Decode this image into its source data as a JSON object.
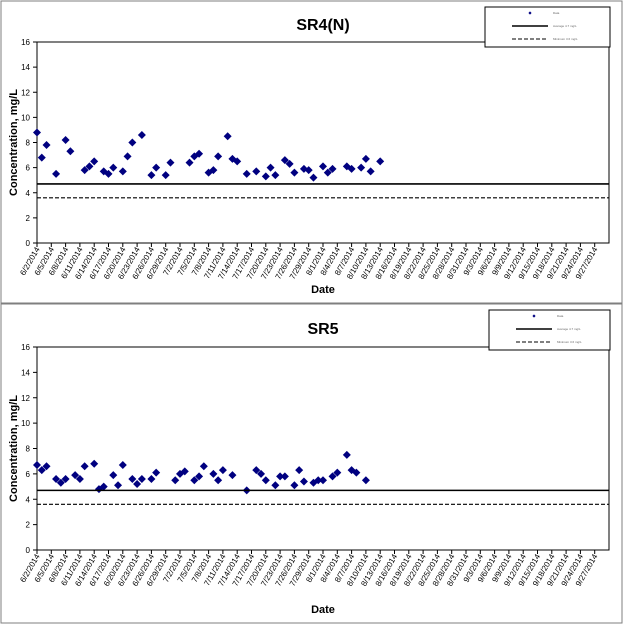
{
  "chart_data": [
    {
      "id": "sr4",
      "type": "scatter",
      "title": "SR4(N)",
      "xlabel": "Date",
      "ylabel": "Concentration, mg/L",
      "ylim": [
        0,
        16
      ],
      "yticks": [
        0,
        2,
        4,
        6,
        8,
        10,
        12,
        14,
        16
      ],
      "xlim": [
        "2014-06-02",
        "2014-09-30"
      ],
      "grid": false,
      "legend_position": "top-right",
      "legend": [
        "Data",
        "Average 4.7 mg/L",
        "Minimum 3.6 mg/L"
      ],
      "xticks": [
        "6/2/2014",
        "6/5/2014",
        "6/8/2014",
        "6/11/2014",
        "6/14/2014",
        "6/17/2014",
        "6/20/2014",
        "6/23/2014",
        "6/26/2014",
        "6/29/2014",
        "7/2/2014",
        "7/5/2014",
        "7/8/2014",
        "7/11/2014",
        "7/14/2014",
        "7/17/2014",
        "7/20/2014",
        "7/23/2014",
        "7/26/2014",
        "7/29/2014",
        "8/1/2014",
        "8/4/2014",
        "8/7/2014",
        "8/10/2014",
        "8/13/2014",
        "8/16/2014",
        "8/19/2014",
        "8/22/2014",
        "8/25/2014",
        "8/28/2014",
        "8/31/2014",
        "9/3/2014",
        "9/6/2014",
        "9/9/2014",
        "9/12/2014",
        "9/15/2014",
        "9/18/2014",
        "9/21/2014",
        "9/24/2014",
        "9/27/2014"
      ],
      "series": [
        {
          "name": "Data",
          "marker": "diamond",
          "color": "#000080",
          "points": [
            [
              "2014-06-02",
              8.8
            ],
            [
              "2014-06-03",
              6.8
            ],
            [
              "2014-06-04",
              7.8
            ],
            [
              "2014-06-06",
              5.5
            ],
            [
              "2014-06-08",
              8.2
            ],
            [
              "2014-06-09",
              7.3
            ],
            [
              "2014-06-12",
              5.8
            ],
            [
              "2014-06-13",
              6.1
            ],
            [
              "2014-06-14",
              6.5
            ],
            [
              "2014-06-16",
              5.7
            ],
            [
              "2014-06-17",
              5.5
            ],
            [
              "2014-06-18",
              6.0
            ],
            [
              "2014-06-20",
              5.7
            ],
            [
              "2014-06-21",
              6.9
            ],
            [
              "2014-06-22",
              8.0
            ],
            [
              "2014-06-24",
              8.6
            ],
            [
              "2014-06-26",
              5.4
            ],
            [
              "2014-06-27",
              6.0
            ],
            [
              "2014-06-29",
              5.4
            ],
            [
              "2014-06-30",
              6.4
            ],
            [
              "2014-07-04",
              6.4
            ],
            [
              "2014-07-05",
              6.9
            ],
            [
              "2014-07-06",
              7.1
            ],
            [
              "2014-07-08",
              5.6
            ],
            [
              "2014-07-09",
              5.8
            ],
            [
              "2014-07-10",
              6.9
            ],
            [
              "2014-07-12",
              8.5
            ],
            [
              "2014-07-13",
              6.7
            ],
            [
              "2014-07-14",
              6.5
            ],
            [
              "2014-07-16",
              5.5
            ],
            [
              "2014-07-18",
              5.7
            ],
            [
              "2014-07-20",
              5.3
            ],
            [
              "2014-07-21",
              6.0
            ],
            [
              "2014-07-22",
              5.4
            ],
            [
              "2014-07-24",
              6.6
            ],
            [
              "2014-07-25",
              6.3
            ],
            [
              "2014-07-26",
              5.6
            ],
            [
              "2014-07-28",
              5.9
            ],
            [
              "2014-07-29",
              5.8
            ],
            [
              "2014-07-30",
              5.2
            ],
            [
              "2014-08-01",
              6.1
            ],
            [
              "2014-08-02",
              5.6
            ],
            [
              "2014-08-03",
              5.9
            ],
            [
              "2014-08-06",
              6.1
            ],
            [
              "2014-08-07",
              5.9
            ],
            [
              "2014-08-09",
              6.0
            ],
            [
              "2014-08-10",
              6.7
            ],
            [
              "2014-08-11",
              5.7
            ],
            [
              "2014-08-13",
              6.5
            ]
          ]
        },
        {
          "name": "Average 4.7 mg/L",
          "type": "hline",
          "value": 4.7,
          "style": "solid"
        },
        {
          "name": "Minimum 3.6 mg/L",
          "type": "hline",
          "value": 3.6,
          "style": "dashed"
        }
      ]
    },
    {
      "id": "sr5",
      "type": "scatter",
      "title": "SR5",
      "xlabel": "Date",
      "ylabel": "Concentration, mg/L",
      "ylim": [
        0,
        16
      ],
      "yticks": [
        0,
        2,
        4,
        6,
        8,
        10,
        12,
        14,
        16
      ],
      "xlim": [
        "2014-06-02",
        "2014-09-30"
      ],
      "grid": false,
      "legend_position": "top-right",
      "legend": [
        "Data",
        "Average 4.7 mg/L",
        "Minimum 3.6 mg/L"
      ],
      "xticks": [
        "6/2/2014",
        "6/5/2014",
        "6/8/2014",
        "6/11/2014",
        "6/14/2014",
        "6/17/2014",
        "6/20/2014",
        "6/23/2014",
        "6/26/2014",
        "6/29/2014",
        "7/2/2014",
        "7/5/2014",
        "7/8/2014",
        "7/11/2014",
        "7/14/2014",
        "7/17/2014",
        "7/20/2014",
        "7/23/2014",
        "7/26/2014",
        "7/29/2014",
        "8/1/2014",
        "8/4/2014",
        "8/7/2014",
        "8/10/2014",
        "8/13/2014",
        "8/16/2014",
        "8/19/2014",
        "8/22/2014",
        "8/25/2014",
        "8/28/2014",
        "8/31/2014",
        "9/3/2014",
        "9/6/2014",
        "9/9/2014",
        "9/12/2014",
        "9/15/2014",
        "9/18/2014",
        "9/21/2014",
        "9/24/2014",
        "9/27/2014"
      ],
      "series": [
        {
          "name": "Data",
          "marker": "diamond",
          "color": "#000080",
          "points": [
            [
              "2014-06-02",
              6.7
            ],
            [
              "2014-06-03",
              6.3
            ],
            [
              "2014-06-04",
              6.6
            ],
            [
              "2014-06-06",
              5.6
            ],
            [
              "2014-06-07",
              5.3
            ],
            [
              "2014-06-08",
              5.6
            ],
            [
              "2014-06-10",
              5.9
            ],
            [
              "2014-06-11",
              5.6
            ],
            [
              "2014-06-12",
              6.6
            ],
            [
              "2014-06-14",
              6.8
            ],
            [
              "2014-06-15",
              4.8
            ],
            [
              "2014-06-16",
              5.0
            ],
            [
              "2014-06-18",
              5.9
            ],
            [
              "2014-06-19",
              5.1
            ],
            [
              "2014-06-20",
              6.7
            ],
            [
              "2014-06-22",
              5.6
            ],
            [
              "2014-06-23",
              5.2
            ],
            [
              "2014-06-24",
              5.6
            ],
            [
              "2014-06-26",
              5.6
            ],
            [
              "2014-06-27",
              6.1
            ],
            [
              "2014-07-01",
              5.5
            ],
            [
              "2014-07-02",
              6.0
            ],
            [
              "2014-07-03",
              6.2
            ],
            [
              "2014-07-05",
              5.5
            ],
            [
              "2014-07-06",
              5.8
            ],
            [
              "2014-07-07",
              6.6
            ],
            [
              "2014-07-09",
              6.0
            ],
            [
              "2014-07-10",
              5.5
            ],
            [
              "2014-07-11",
              6.3
            ],
            [
              "2014-07-13",
              5.9
            ],
            [
              "2014-07-16",
              4.7
            ],
            [
              "2014-07-18",
              6.3
            ],
            [
              "2014-07-19",
              6.0
            ],
            [
              "2014-07-20",
              5.5
            ],
            [
              "2014-07-22",
              5.1
            ],
            [
              "2014-07-23",
              5.8
            ],
            [
              "2014-07-24",
              5.8
            ],
            [
              "2014-07-26",
              5.1
            ],
            [
              "2014-07-27",
              6.3
            ],
            [
              "2014-07-28",
              5.4
            ],
            [
              "2014-07-30",
              5.3
            ],
            [
              "2014-07-31",
              5.5
            ],
            [
              "2014-08-01",
              5.5
            ],
            [
              "2014-08-03",
              5.8
            ],
            [
              "2014-08-04",
              6.1
            ],
            [
              "2014-08-06",
              7.5
            ],
            [
              "2014-08-07",
              6.3
            ],
            [
              "2014-08-08",
              6.1
            ],
            [
              "2014-08-10",
              5.5
            ]
          ]
        },
        {
          "name": "Average 4.7 mg/L",
          "type": "hline",
          "value": 4.7,
          "style": "solid"
        },
        {
          "name": "Minimum 3.6 mg/L",
          "type": "hline",
          "value": 3.6,
          "style": "dashed"
        }
      ]
    }
  ]
}
